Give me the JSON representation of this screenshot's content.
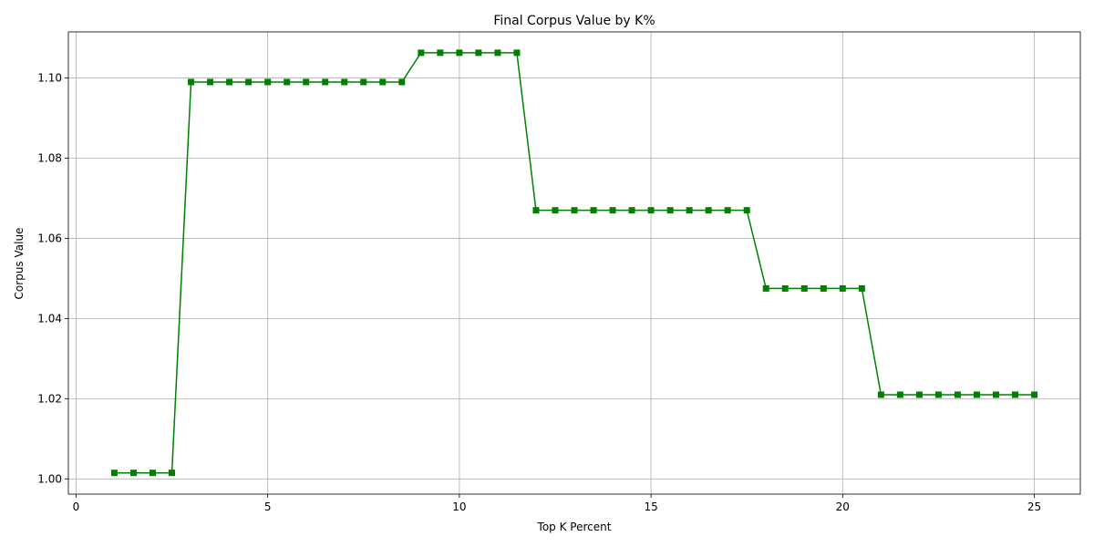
{
  "chart_data": {
    "type": "line",
    "title": "Final Corpus Value by K%",
    "xlabel": "Top K Percent",
    "ylabel": "Corpus Value",
    "xlim": [
      -0.2,
      26.2
    ],
    "ylim": [
      0.9962,
      1.1115
    ],
    "xticks": [
      0,
      5,
      10,
      15,
      20,
      25
    ],
    "yticks": [
      1.0,
      1.02,
      1.04,
      1.06,
      1.08,
      1.1
    ],
    "ytick_labels": [
      "1.00",
      "1.02",
      "1.04",
      "1.06",
      "1.08",
      "1.10"
    ],
    "grid": true,
    "color": "#008000",
    "marker": "square",
    "series": [
      {
        "x": [
          1,
          1.5,
          2,
          2.5,
          3,
          3.5,
          4,
          4.5,
          5,
          5.5,
          6,
          6.5,
          7,
          7.5,
          8,
          8.5,
          9,
          9.5,
          10,
          10.5,
          11,
          11.5,
          12,
          12.5,
          13,
          13.5,
          14,
          14.5,
          15,
          15.5,
          16,
          16.5,
          17,
          17.5,
          18,
          18.5,
          19,
          19.5,
          20,
          20.5,
          21,
          21.5,
          22,
          22.5,
          23,
          23.5,
          24,
          24.5,
          25
        ],
        "y": [
          1.0015,
          1.0015,
          1.0015,
          1.0015,
          1.099,
          1.099,
          1.099,
          1.099,
          1.099,
          1.099,
          1.099,
          1.099,
          1.099,
          1.099,
          1.099,
          1.099,
          1.1063,
          1.1063,
          1.1063,
          1.1063,
          1.1063,
          1.1063,
          1.067,
          1.067,
          1.067,
          1.067,
          1.067,
          1.067,
          1.067,
          1.067,
          1.067,
          1.067,
          1.067,
          1.067,
          1.0475,
          1.0475,
          1.0475,
          1.0475,
          1.0475,
          1.0475,
          1.021,
          1.021,
          1.021,
          1.021,
          1.021,
          1.021,
          1.021,
          1.021,
          1.021
        ]
      }
    ]
  }
}
